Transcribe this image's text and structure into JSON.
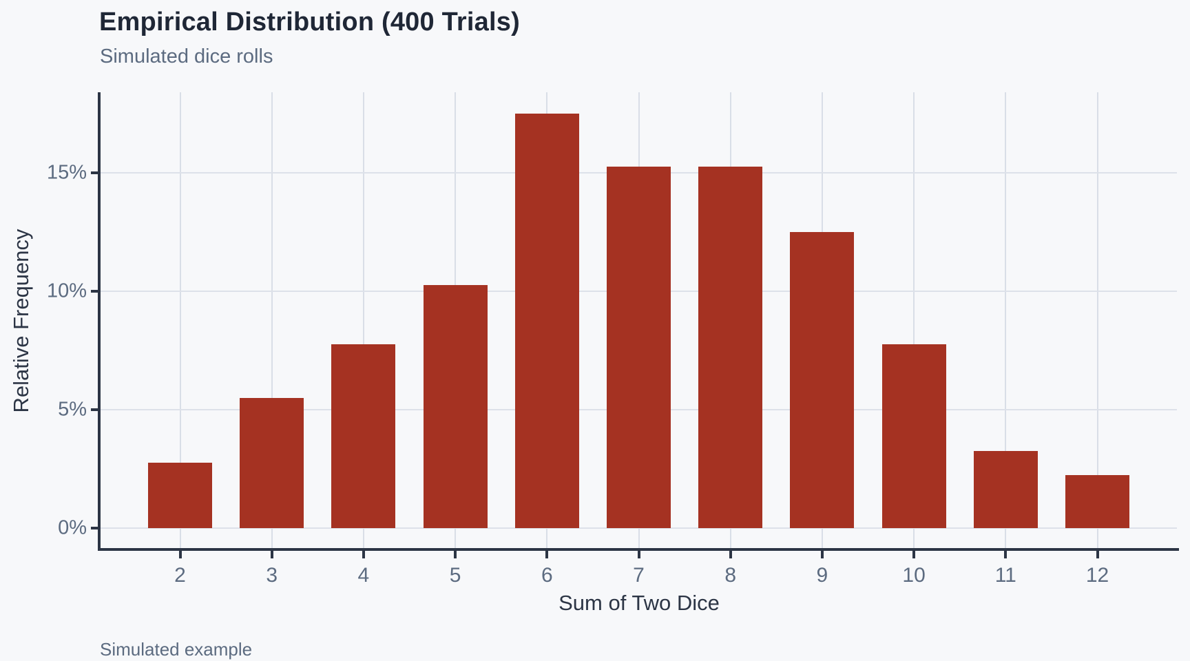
{
  "chart_data": {
    "type": "bar",
    "title": "Empirical Distribution (400 Trials)",
    "subtitle": "Simulated dice rolls",
    "caption": "Simulated example",
    "xlabel": "Sum of Two Dice",
    "ylabel": "Relative Frequency",
    "categories": [
      "2",
      "3",
      "4",
      "5",
      "6",
      "7",
      "8",
      "9",
      "10",
      "11",
      "12"
    ],
    "values": [
      2.75,
      5.5,
      7.75,
      10.25,
      17.5,
      15.25,
      15.25,
      12.5,
      7.75,
      3.25,
      2.25
    ],
    "value_unit": "%",
    "trials_total": 400,
    "ylim": [
      0,
      18.4
    ],
    "yticks": [
      0,
      5,
      10,
      15
    ],
    "ytick_labels": [
      "0%",
      "5%",
      "10%",
      "15%"
    ],
    "grid": true,
    "legend": "none",
    "bar_color": "#a53222",
    "colors": {
      "background": "#f7f8fa",
      "bar": "#a53222",
      "h_gridline": "#dde1e9",
      "v_gridline": "#d9dee7",
      "spine": "#2c3545",
      "title_text": "#1f2736",
      "axis_title_text": "#2c3545",
      "muted_text": "#5c6b80"
    }
  }
}
